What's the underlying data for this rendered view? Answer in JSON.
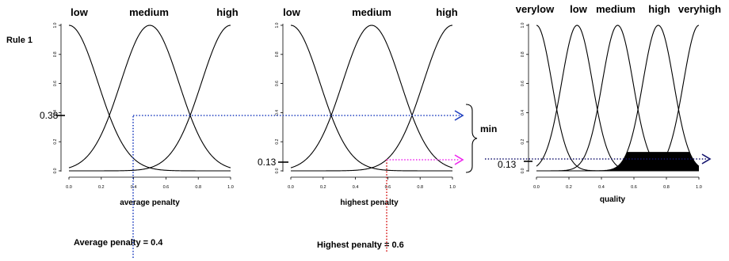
{
  "rule_label": "Rule 1",
  "min_label": "min",
  "colors": {
    "blue": "#1f3fbf",
    "red": "#d81b1b",
    "magenta": "#ee22ee",
    "navy": "#14146e",
    "black": "#000000"
  },
  "panels": [
    {
      "id": "average",
      "xlabel": "average penalty",
      "set_labels": [
        "low",
        "medium",
        "high"
      ],
      "x_ticks": [
        "0.0",
        "0.2",
        "0.4",
        "0.6",
        "0.8",
        "1.0"
      ],
      "y_ticks": [
        "0.0",
        "0.2",
        "0.4",
        "0.6",
        "0.8",
        "1.0"
      ],
      "input_value": 0.4,
      "membership_marker": "0.38",
      "input_caption": "Average penalty = 0.4",
      "activated_set": "low",
      "activated_degree": 0.38
    },
    {
      "id": "highest",
      "xlabel": "highest penalty",
      "set_labels": [
        "low",
        "medium",
        "high"
      ],
      "x_ticks": [
        "0.0",
        "0.2",
        "0.4",
        "0.6",
        "0.8",
        "1.0"
      ],
      "y_ticks": [
        "0.0",
        "0.2",
        "0.4",
        "0.6",
        "0.8",
        "1.0"
      ],
      "input_value": 0.6,
      "membership_marker": "0.13",
      "input_caption": "Highest penalty = 0.6",
      "activated_set": "low",
      "activated_degree": 0.13
    },
    {
      "id": "quality",
      "xlabel": "quality",
      "set_labels": [
        "verylow",
        "low",
        "medium",
        "high",
        "veryhigh"
      ],
      "x_ticks": [
        "0.0",
        "0.2",
        "0.4",
        "0.6",
        "0.8",
        "1.0"
      ],
      "y_ticks": [
        "0.0",
        "0.2",
        "0.4",
        "0.6",
        "0.8",
        "1.0"
      ],
      "membership_marker": "0.13",
      "clip_degree": 0.13,
      "clipped_set": "high"
    }
  ]
}
